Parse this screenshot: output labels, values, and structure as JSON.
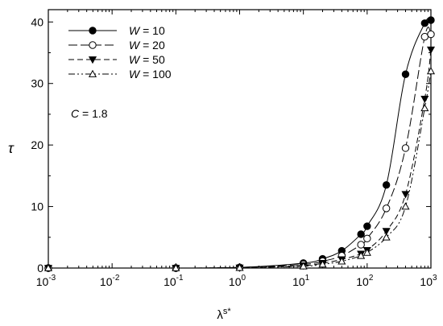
{
  "chart_data": {
    "type": "line",
    "xlabel_base": "λ",
    "xlabel_sup": "s*",
    "ylabel": "τ",
    "xscale": "log",
    "xlim": [
      0.001,
      1000
    ],
    "ylim": [
      0,
      42
    ],
    "x_ticks": [
      {
        "base": "10",
        "exp": "-3",
        "value": 0.001
      },
      {
        "base": "10",
        "exp": "-2",
        "value": 0.01
      },
      {
        "base": "10",
        "exp": "-1",
        "value": 0.1
      },
      {
        "base": "10",
        "exp": "0",
        "value": 1
      },
      {
        "base": "10",
        "exp": "1",
        "value": 10
      },
      {
        "base": "10",
        "exp": "2",
        "value": 100
      },
      {
        "base": "10",
        "exp": "3",
        "value": 1000
      }
    ],
    "y_ticks": [
      {
        "label": "0",
        "value": 0
      },
      {
        "label": "10",
        "value": 10
      },
      {
        "label": "20",
        "value": 20
      },
      {
        "label": "30",
        "value": 30
      },
      {
        "label": "40",
        "value": 40
      }
    ],
    "grid": false,
    "legend_position": "top-left",
    "annotation": {
      "italic": "C",
      "rest": " = 1.8"
    },
    "series": [
      {
        "legend_italic": "W",
        "legend_rest": " = 10",
        "marker": "circle-filled",
        "dash": "none",
        "x": [
          0.001,
          0.1,
          1,
          10,
          20,
          40,
          80,
          100,
          200,
          400,
          800,
          1000
        ],
        "y": [
          0,
          0,
          0.1,
          0.8,
          1.5,
          2.8,
          5.5,
          6.8,
          13.5,
          31.5,
          39.8,
          40.3
        ]
      },
      {
        "legend_italic": "W",
        "legend_rest": " = 20",
        "marker": "circle-open",
        "dash": "long",
        "x": [
          0.001,
          0.1,
          1,
          10,
          20,
          40,
          80,
          100,
          200,
          400,
          800,
          1000
        ],
        "y": [
          0,
          0,
          0.1,
          0.6,
          1.1,
          2.0,
          3.8,
          4.8,
          9.7,
          19.5,
          37.6,
          38.0
        ]
      },
      {
        "legend_italic": "W",
        "legend_rest": " = 50",
        "marker": "triangle-down-filled",
        "dash": "medium",
        "x": [
          0.001,
          0.1,
          1,
          10,
          20,
          40,
          80,
          100,
          200,
          400,
          800,
          1000
        ],
        "y": [
          0,
          0,
          0.05,
          0.4,
          0.8,
          1.4,
          2.3,
          2.9,
          6.0,
          12.0,
          27.5,
          35.5
        ]
      },
      {
        "legend_italic": "W",
        "legend_rest": " = 100",
        "marker": "triangle-up-open",
        "dash": "dashdotdot",
        "x": [
          0.001,
          0.1,
          1,
          10,
          20,
          40,
          80,
          100,
          200,
          400,
          800,
          1000
        ],
        "y": [
          0,
          0,
          0.05,
          0.3,
          0.6,
          1.1,
          2.0,
          2.5,
          5.0,
          10.0,
          26.0,
          32.0
        ]
      }
    ]
  }
}
